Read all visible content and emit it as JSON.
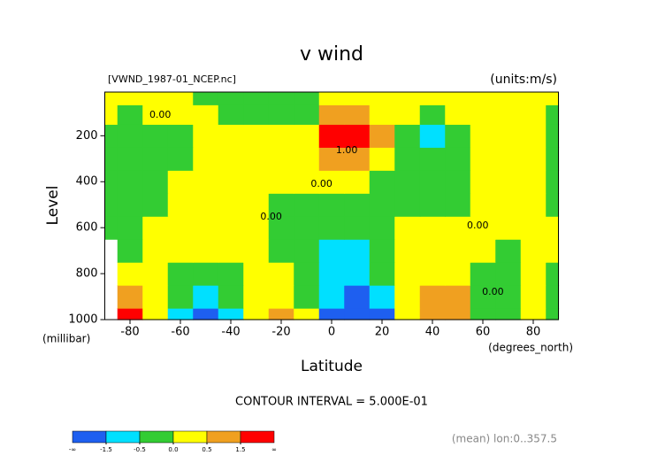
{
  "chart_data": {
    "type": "contour",
    "title": "v wind",
    "subtitle": "[VWND_1987-01_NCEP.nc]",
    "units": "(units:m/s)",
    "x_label": "Latitude",
    "x_unit": "(degrees_north)",
    "y_label": "Level",
    "y_unit": "(millibar)",
    "contour_interval": "CONTOUR INTERVAL = 5.000E-01",
    "footnote": "(mean) lon:0..357.5",
    "xlim": [
      -90,
      90
    ],
    "ylim": [
      1000,
      10
    ],
    "xticks": [
      -80,
      -60,
      -40,
      -20,
      0,
      20,
      40,
      60,
      80
    ],
    "yticks": [
      200,
      400,
      600,
      800,
      1000
    ],
    "x": [
      -90,
      -80,
      -70,
      -60,
      -50,
      -40,
      -30,
      -20,
      -10,
      0,
      10,
      20,
      30,
      40,
      50,
      60,
      70,
      80,
      90
    ],
    "y": [
      1000,
      900,
      800,
      700,
      600,
      500,
      400,
      300,
      200,
      100,
      30
    ],
    "z": [
      [
        null,
        2.1,
        0.25,
        -0.8,
        -2.0,
        -0.8,
        0.25,
        1.0,
        0.25,
        -2.0,
        -2.2,
        -1.6,
        0.25,
        1.0,
        1.0,
        -0.25,
        -0.25,
        0.25,
        -0.25
      ],
      [
        null,
        1.0,
        0.25,
        -0.25,
        -0.8,
        -0.25,
        0.25,
        0.25,
        -0.25,
        -0.8,
        -1.7,
        -0.8,
        0.25,
        1.0,
        0.8,
        -0.25,
        -0.25,
        0.25,
        -0.25
      ],
      [
        null,
        0.25,
        0.25,
        -0.25,
        -0.25,
        -0.25,
        0.25,
        0.25,
        -0.25,
        -0.8,
        -0.8,
        -0.25,
        0.25,
        0.25,
        0.25,
        -0.25,
        -0.25,
        0.25,
        -0.25
      ],
      [
        null,
        -0.25,
        0.25,
        0.25,
        0.25,
        0.25,
        0.25,
        -0.25,
        -0.25,
        -0.6,
        -0.7,
        -0.25,
        0.25,
        0.25,
        0.25,
        0.25,
        -0.25,
        0.25,
        0.25
      ],
      [
        -0.25,
        -0.25,
        0.25,
        0.25,
        0.25,
        0.25,
        0.25,
        -0.25,
        -0.25,
        -0.25,
        -0.25,
        -0.25,
        0.25,
        0.25,
        0.25,
        0.25,
        0.25,
        0.25,
        0.25
      ],
      [
        -0.25,
        -0.25,
        -0.25,
        0.25,
        0.25,
        0.25,
        0.25,
        -0.25,
        -0.25,
        -0.25,
        -0.25,
        -0.25,
        -0.25,
        -0.25,
        -0.25,
        0.25,
        0.25,
        0.25,
        -0.25
      ],
      [
        -0.25,
        -0.25,
        -0.25,
        0.25,
        0.25,
        0.25,
        0.25,
        0.25,
        0.25,
        0.25,
        0.25,
        -0.25,
        -0.25,
        -0.25,
        -0.25,
        0.25,
        0.25,
        0.25,
        -0.25
      ],
      [
        -0.25,
        -0.25,
        -0.25,
        -0.25,
        0.25,
        0.25,
        0.25,
        0.25,
        0.25,
        0.8,
        0.8,
        0.25,
        -0.25,
        -0.25,
        -0.25,
        0.25,
        0.25,
        0.25,
        -0.25
      ],
      [
        -0.25,
        -0.25,
        -0.25,
        -0.25,
        0.25,
        0.25,
        0.25,
        0.25,
        0.25,
        1.8,
        2.6,
        0.9,
        -0.25,
        -0.7,
        -0.25,
        0.25,
        0.25,
        0.25,
        -0.25
      ],
      [
        0.25,
        -0.25,
        0.25,
        0.25,
        0.25,
        -0.25,
        -0.25,
        -0.25,
        -0.25,
        0.8,
        0.8,
        0.25,
        0.25,
        -0.25,
        0.25,
        0.25,
        0.25,
        0.25,
        -0.25
      ],
      [
        0.25,
        0.25,
        0.25,
        0.25,
        -0.25,
        -0.25,
        -0.25,
        -0.25,
        -0.25,
        0.25,
        0.25,
        0.25,
        0.25,
        0.25,
        0.25,
        0.25,
        0.25,
        0.25,
        0.25
      ]
    ],
    "levels": [
      -1.5,
      -0.5,
      {
        "value": 0,
        "label": "0.0"
      },
      0.5,
      1.5
    ],
    "level_end_labels": [
      "-∞",
      "∞"
    ],
    "colors": [
      "#1e5ff0",
      "#00e0ff",
      "#33cc33",
      "#ffff00",
      "#f0a020",
      "#ff0000"
    ],
    "annotations": [
      {
        "text": "0.00",
        "x": -68,
        "y": 110
      },
      {
        "text": "1.00",
        "x": 6,
        "y": 264
      },
      {
        "text": "0.00",
        "x": -4,
        "y": 411
      },
      {
        "text": "0.00",
        "x": -24,
        "y": 553
      },
      {
        "text": "0.00",
        "x": 58,
        "y": 592
      },
      {
        "text": "0.00",
        "x": 64,
        "y": 881
      }
    ]
  }
}
